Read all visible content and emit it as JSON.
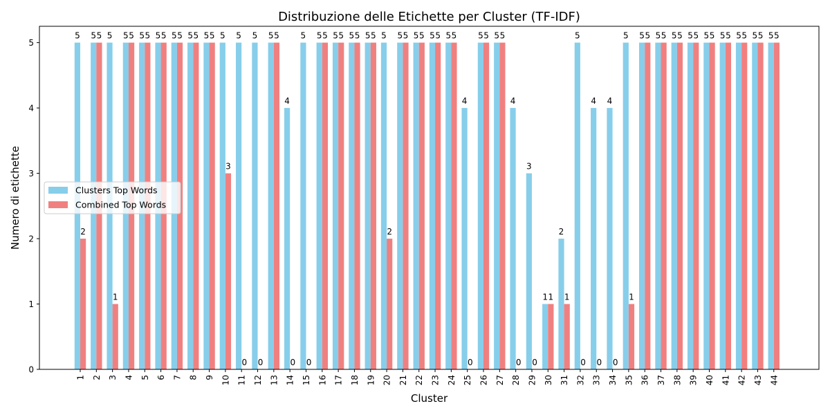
{
  "chart_data": {
    "type": "bar",
    "title": "Distribuzione delle Etichette per Cluster (TF-IDF)",
    "xlabel": "Cluster",
    "ylabel": "Numero di etichette",
    "ylim": [
      0,
      5.25
    ],
    "yticks": [
      0,
      1,
      2,
      3,
      4,
      5
    ],
    "categories": [
      "1",
      "2",
      "3",
      "4",
      "5",
      "6",
      "7",
      "8",
      "9",
      "10",
      "11",
      "12",
      "13",
      "14",
      "15",
      "16",
      "17",
      "18",
      "19",
      "20",
      "21",
      "22",
      "23",
      "24",
      "25",
      "26",
      "27",
      "28",
      "29",
      "30",
      "31",
      "32",
      "33",
      "34",
      "35",
      "36",
      "37",
      "38",
      "39",
      "40",
      "41",
      "42",
      "43",
      "44"
    ],
    "series": [
      {
        "name": "Clusters Top Words",
        "color": "#87ceeb",
        "values": [
          5,
          5,
          5,
          5,
          5,
          5,
          5,
          5,
          5,
          5,
          5,
          5,
          5,
          4,
          5,
          5,
          5,
          5,
          5,
          5,
          5,
          5,
          5,
          5,
          4,
          5,
          5,
          4,
          3,
          1,
          2,
          5,
          4,
          4,
          5,
          5,
          5,
          5,
          5,
          5,
          5,
          5,
          5,
          5
        ]
      },
      {
        "name": "Combined Top Words",
        "color": "#f08080",
        "values": [
          2,
          5,
          1,
          5,
          5,
          5,
          5,
          5,
          5,
          3,
          0,
          0,
          5,
          0,
          0,
          5,
          5,
          5,
          5,
          2,
          5,
          5,
          5,
          5,
          0,
          5,
          5,
          0,
          0,
          1,
          1,
          0,
          0,
          0,
          1,
          5,
          5,
          5,
          5,
          5,
          5,
          5,
          5,
          5
        ]
      }
    ],
    "legend_position": "center-left",
    "grid": false
  }
}
